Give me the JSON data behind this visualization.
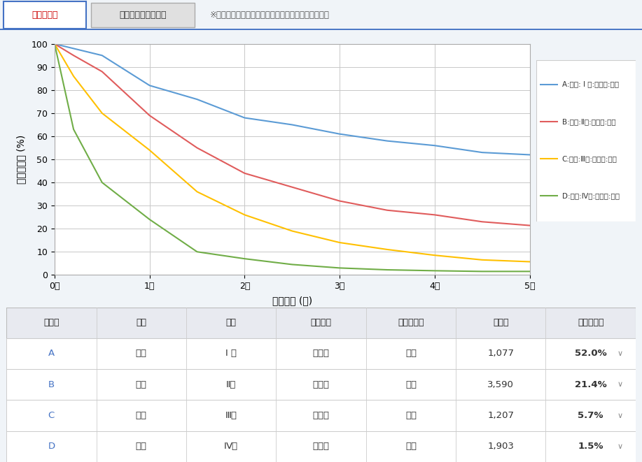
{
  "title_tab1": "実測生存率",
  "title_tab2": "ネット・サバイバル",
  "title_note": "※右横凧例をクリックするとグラフが太線になります",
  "xlabel": "生存期間 (年)",
  "ylabel": "実測生存率 (%)",
  "xlim": [
    0,
    5
  ],
  "ylim": [
    0,
    100
  ],
  "xticks": [
    0,
    1,
    2,
    3,
    4,
    5
  ],
  "xticklabels": [
    "0年",
    "1年",
    "2年",
    "3年",
    "4年",
    "5年"
  ],
  "yticks": [
    0,
    10,
    20,
    30,
    40,
    50,
    60,
    70,
    80,
    90,
    100
  ],
  "series": [
    {
      "label": "A:男女: I 期:全年齢:全体",
      "color": "#5b9bd5",
      "x": [
        0,
        0.2,
        0.5,
        1.0,
        1.5,
        2.0,
        2.5,
        3.0,
        3.5,
        4.0,
        4.5,
        5.0
      ],
      "y": [
        100,
        98,
        95,
        82,
        76,
        68,
        65,
        61,
        58,
        56,
        53,
        52
      ]
    },
    {
      "label": "B:男女:Ⅱ期:全年齢:全体",
      "color": "#e05c5c",
      "x": [
        0,
        0.2,
        0.5,
        1.0,
        1.5,
        2.0,
        2.5,
        3.0,
        3.5,
        4.0,
        4.5,
        5.0
      ],
      "y": [
        100,
        95,
        88,
        69,
        55,
        44,
        38,
        32,
        28,
        26,
        23,
        21.4
      ]
    },
    {
      "label": "C:男女:Ⅲ期:全年齢:全体",
      "color": "#ffc000",
      "x": [
        0,
        0.2,
        0.5,
        1.0,
        1.5,
        2.0,
        2.5,
        3.0,
        3.5,
        4.0,
        4.5,
        5.0
      ],
      "y": [
        100,
        86,
        70,
        54,
        36,
        26,
        19,
        14,
        11,
        8.5,
        6.5,
        5.7
      ]
    },
    {
      "label": "D:男女:Ⅳ期:全年齢:全体",
      "color": "#70ad47",
      "x": [
        0,
        0.2,
        0.5,
        1.0,
        1.5,
        2.0,
        2.5,
        3.0,
        3.5,
        4.0,
        4.5,
        5.0
      ],
      "y": [
        100,
        63,
        40,
        24,
        10,
        7,
        4.5,
        3,
        2.2,
        1.8,
        1.5,
        1.5
      ]
    }
  ],
  "table_headers": [
    "グラフ",
    "性別",
    "病期",
    "年齢階級",
    "手術の有無",
    "対象数",
    "実測生存率"
  ],
  "table_rows": [
    [
      "A",
      "男女",
      "I 期",
      "全年齢",
      "全体",
      "1,077",
      "52.0%"
    ],
    [
      "B",
      "男女",
      "Ⅱ期",
      "全年齢",
      "全体",
      "3,590",
      "21.4%"
    ],
    [
      "C",
      "男女",
      "Ⅲ期",
      "全年齢",
      "全体",
      "1,207",
      "5.7%"
    ],
    [
      "D",
      "男女",
      "Ⅳ期",
      "全年齢",
      "全体",
      "1,903",
      "1.5%"
    ]
  ],
  "bg_color": "#f0f4f8",
  "chart_area_bg": "#f8f8f8",
  "plot_bg": "#ffffff",
  "grid_color": "#c8c8c8",
  "tab_active_border": "#4472c4",
  "tab_active_text": "#cc0000",
  "tab2_bg": "#e0e0e0",
  "note_color": "#555555",
  "header_bg": "#e8eaf0",
  "row_border": "#cccccc",
  "graph_label_color": "#4472c4"
}
